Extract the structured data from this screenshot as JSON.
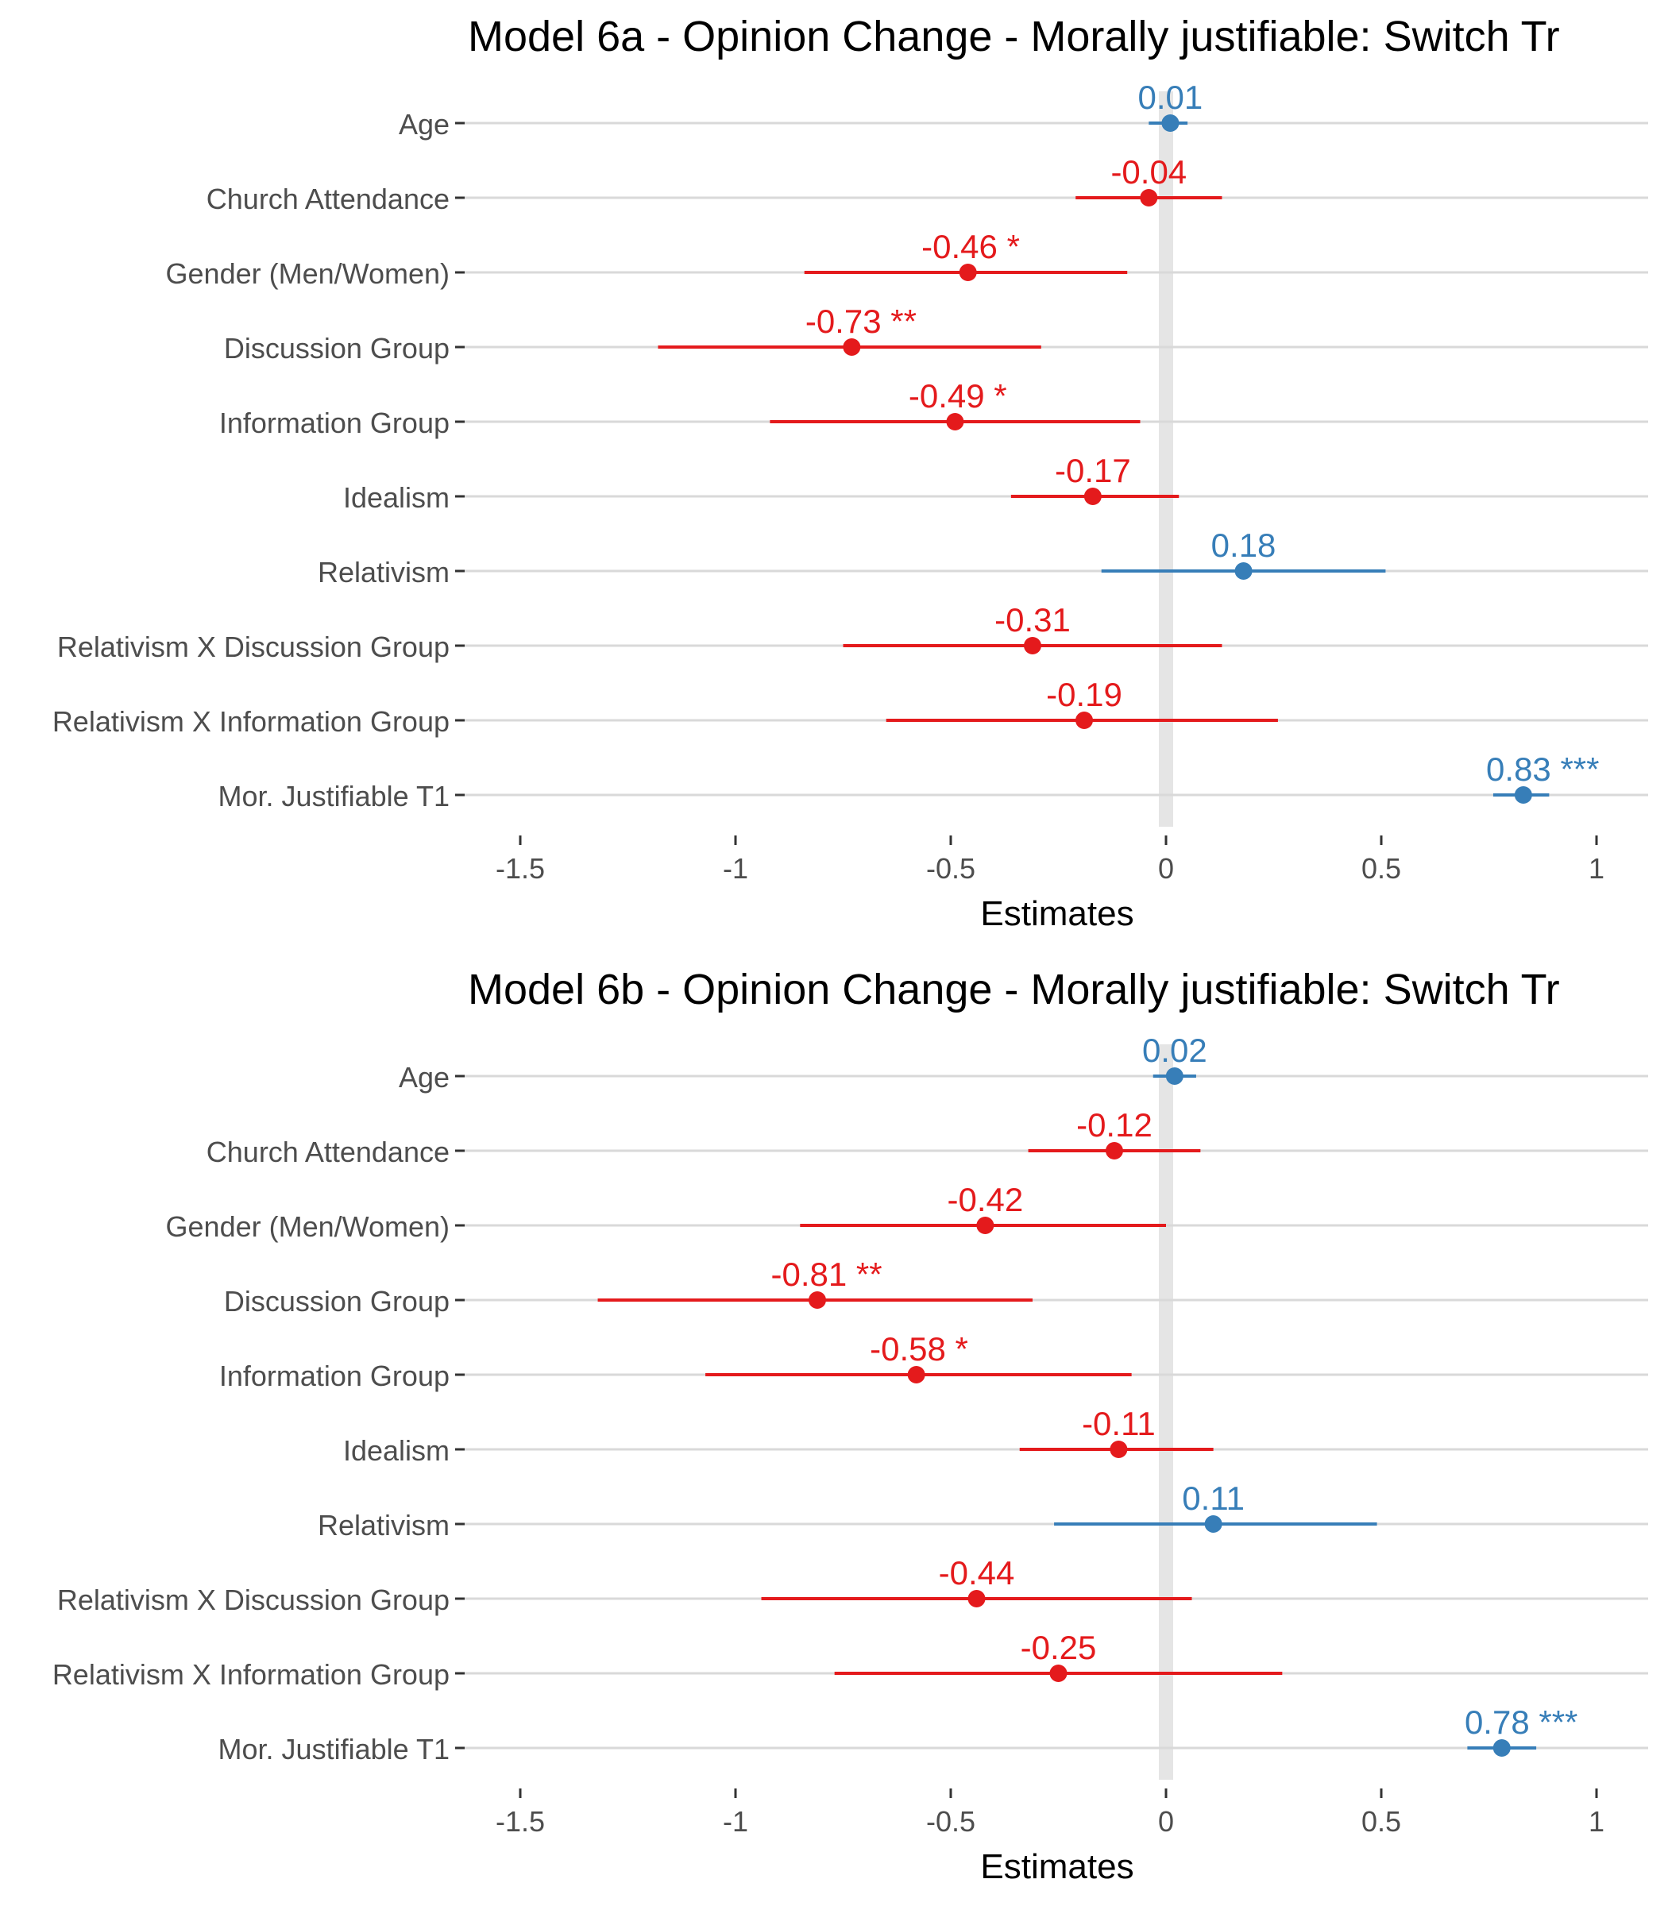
{
  "chart_data": [
    {
      "type": "forest",
      "title": "Model 6a - Opinion Change - Morally justifiable: Switch Tr",
      "xlabel": "Estimates",
      "ylabel": "",
      "xlim": [
        -1.65,
        1.13
      ],
      "x_ticks": [
        -1.5,
        -1,
        -0.5,
        0,
        0.5,
        1
      ],
      "x_tick_labels": [
        "-1.5",
        "-1",
        "-0.5",
        "0",
        "0.5",
        "1"
      ],
      "grid": true,
      "legend": "none",
      "terms": [
        "Age",
        "Church Attendance",
        "Gender (Men/Women)",
        "Discussion Group",
        "Information Group",
        "Idealism",
        "Relativism",
        "Relativism X Discussion Group",
        "Relativism X Information Group",
        "Mor. Justifiable T1"
      ],
      "estimates": [
        0.01,
        -0.04,
        -0.46,
        -0.73,
        -0.49,
        -0.17,
        0.18,
        -0.31,
        -0.19,
        0.83
      ],
      "ci_low": [
        -0.04,
        -0.21,
        -0.84,
        -1.18,
        -0.92,
        -0.36,
        -0.15,
        -0.75,
        -0.65,
        0.76
      ],
      "ci_high": [
        0.05,
        0.13,
        -0.09,
        -0.29,
        -0.06,
        0.03,
        0.51,
        0.13,
        0.26,
        0.89
      ],
      "labels": [
        "0.01",
        "-0.04",
        "-0.46 *",
        "-0.73 **",
        "-0.49 *",
        "-0.17",
        "0.18",
        "-0.31",
        "-0.19",
        "0.83 ***"
      ]
    },
    {
      "type": "forest",
      "title": "Model 6b - Opinion Change - Morally justifiable: Switch Tr",
      "xlabel": "Estimates",
      "ylabel": "",
      "xlim": [
        -1.65,
        1.13
      ],
      "x_ticks": [
        -1.5,
        -1,
        -0.5,
        0,
        0.5,
        1
      ],
      "x_tick_labels": [
        "-1.5",
        "-1",
        "-0.5",
        "0",
        "0.5",
        "1"
      ],
      "grid": true,
      "legend": "none",
      "terms": [
        "Age",
        "Church Attendance",
        "Gender (Men/Women)",
        "Discussion Group",
        "Information Group",
        "Idealism",
        "Relativism",
        "Relativism X Discussion Group",
        "Relativism X Information Group",
        "Mor. Justifiable T1"
      ],
      "estimates": [
        0.02,
        -0.12,
        -0.42,
        -0.81,
        -0.58,
        -0.11,
        0.11,
        -0.44,
        -0.25,
        0.78
      ],
      "ci_low": [
        -0.03,
        -0.32,
        -0.85,
        -1.32,
        -1.07,
        -0.34,
        -0.26,
        -0.94,
        -0.77,
        0.7
      ],
      "ci_high": [
        0.07,
        0.08,
        0.0,
        -0.31,
        -0.08,
        0.11,
        0.49,
        0.06,
        0.27,
        0.86
      ],
      "labels": [
        "0.02",
        "-0.12",
        "-0.42",
        "-0.81 **",
        "-0.58 *",
        "-0.11",
        "0.11",
        "-0.44",
        "-0.25",
        "0.78 ***"
      ]
    }
  ],
  "colors": {
    "positive": "#377eb8",
    "negative": "#e41a1c",
    "gridline": "#d9d9d9",
    "zero_band": "#e5e5e5",
    "axis_text": "#4d4d4d",
    "title_text": "#000000"
  }
}
